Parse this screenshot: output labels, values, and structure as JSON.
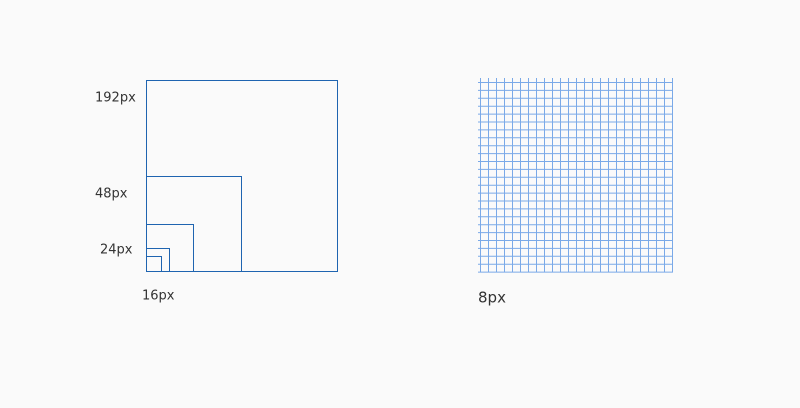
{
  "left": {
    "labels": [
      "192px",
      "48px",
      "24px",
      "16px"
    ]
  },
  "right": {
    "label": "8px"
  }
}
